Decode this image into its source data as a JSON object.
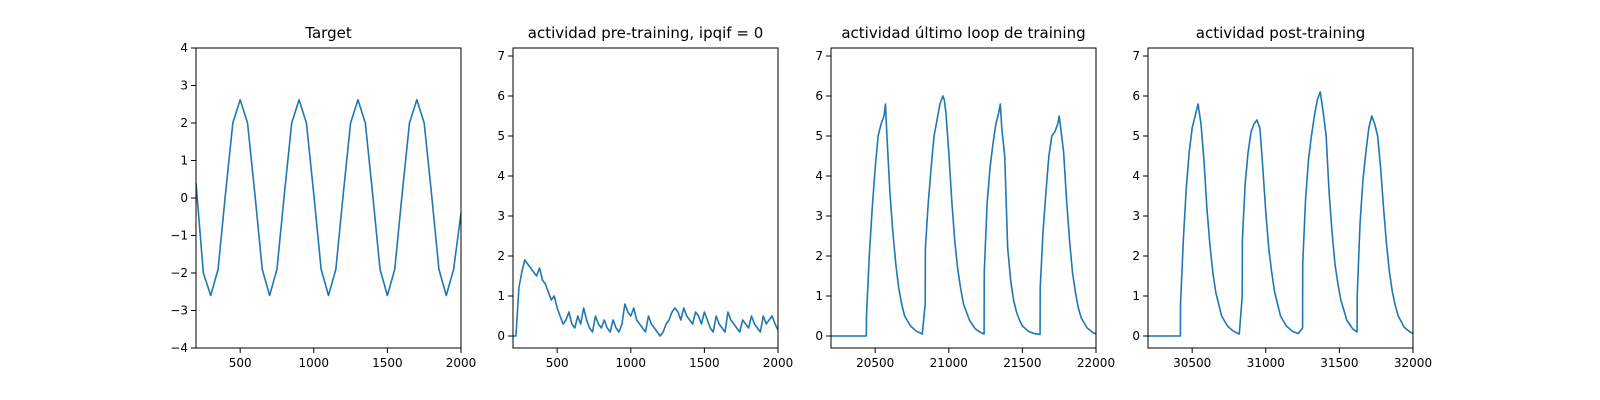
{
  "chart_data": [
    {
      "type": "line",
      "title": "Target",
      "xlim": [
        200,
        2000
      ],
      "ylim": [
        -4,
        4
      ],
      "xticks": [
        500,
        1000,
        1500,
        2000
      ],
      "yticks": [
        -4,
        -3,
        -2,
        -1,
        0,
        1,
        2,
        3,
        4
      ],
      "xtick_labels": [
        "500",
        "1000",
        "1500",
        "2000"
      ],
      "ytick_labels": [
        "−4",
        "−3",
        "−2",
        "−1",
        "0",
        "1",
        "2",
        "3",
        "4"
      ],
      "grid": false,
      "series": [
        {
          "color": "#1f77b4",
          "x": [
            200,
            250,
            300,
            350,
            400,
            450,
            500,
            550,
            600,
            650,
            700,
            750,
            800,
            850,
            900,
            950,
            1000,
            1050,
            1100,
            1150,
            1200,
            1250,
            1300,
            1350,
            1400,
            1450,
            1500,
            1550,
            1600,
            1650,
            1700,
            1750,
            1800,
            1850,
            1900,
            1950,
            2000
          ],
          "y": [
            0.4,
            -2.0,
            -2.6,
            -1.9,
            0.1,
            2.0,
            2.62,
            2.0,
            0.1,
            -1.9,
            -2.6,
            -1.9,
            0.1,
            2.0,
            2.62,
            2.0,
            0.1,
            -1.9,
            -2.6,
            -1.9,
            0.1,
            2.0,
            2.62,
            2.0,
            0.1,
            -1.9,
            -2.6,
            -1.9,
            0.1,
            2.0,
            2.62,
            2.0,
            0.1,
            -1.9,
            -2.6,
            -1.9,
            -0.4
          ]
        }
      ]
    },
    {
      "type": "line",
      "title": "actividad pre-training, ipqif = 0",
      "xlim": [
        200,
        2000
      ],
      "ylim": [
        -0.3,
        7.2
      ],
      "xticks": [
        500,
        1000,
        1500,
        2000
      ],
      "yticks": [
        0,
        1,
        2,
        3,
        4,
        5,
        6,
        7
      ],
      "xtick_labels": [
        "500",
        "1000",
        "1500",
        "2000"
      ],
      "ytick_labels": [
        "0",
        "1",
        "2",
        "3",
        "4",
        "5",
        "6",
        "7"
      ],
      "grid": false,
      "series": [
        {
          "color": "#1f77b4",
          "x": [
            200,
            220,
            240,
            260,
            280,
            300,
            320,
            340,
            360,
            380,
            400,
            420,
            440,
            460,
            480,
            500,
            520,
            540,
            560,
            580,
            600,
            620,
            640,
            660,
            680,
            700,
            720,
            740,
            760,
            780,
            800,
            820,
            840,
            860,
            880,
            900,
            920,
            940,
            960,
            980,
            1000,
            1020,
            1040,
            1060,
            1080,
            1100,
            1120,
            1140,
            1160,
            1180,
            1200,
            1220,
            1240,
            1260,
            1280,
            1300,
            1320,
            1340,
            1360,
            1380,
            1400,
            1420,
            1440,
            1460,
            1480,
            1500,
            1520,
            1540,
            1560,
            1580,
            1600,
            1620,
            1640,
            1660,
            1680,
            1700,
            1720,
            1740,
            1760,
            1780,
            1800,
            1820,
            1840,
            1860,
            1880,
            1900,
            1920,
            1940,
            1960,
            1980,
            2000
          ],
          "y": [
            0.0,
            0.0,
            1.2,
            1.6,
            1.9,
            1.8,
            1.7,
            1.6,
            1.5,
            1.7,
            1.4,
            1.3,
            1.1,
            0.9,
            1.0,
            0.7,
            0.5,
            0.3,
            0.4,
            0.6,
            0.3,
            0.2,
            0.5,
            0.3,
            0.7,
            0.4,
            0.2,
            0.1,
            0.5,
            0.3,
            0.2,
            0.4,
            0.2,
            0.1,
            0.4,
            0.2,
            0.1,
            0.3,
            0.8,
            0.6,
            0.5,
            0.7,
            0.4,
            0.3,
            0.2,
            0.1,
            0.5,
            0.3,
            0.2,
            0.1,
            0.0,
            0.1,
            0.3,
            0.4,
            0.6,
            0.7,
            0.6,
            0.4,
            0.7,
            0.5,
            0.4,
            0.3,
            0.6,
            0.5,
            0.3,
            0.6,
            0.4,
            0.2,
            0.1,
            0.5,
            0.3,
            0.2,
            0.1,
            0.6,
            0.4,
            0.3,
            0.2,
            0.1,
            0.4,
            0.3,
            0.2,
            0.5,
            0.3,
            0.2,
            0.1,
            0.5,
            0.3,
            0.4,
            0.5,
            0.3,
            0.15
          ]
        }
      ]
    },
    {
      "type": "line",
      "title": "actividad último loop de training",
      "xlim": [
        20200,
        22000
      ],
      "ylim": [
        -0.3,
        7.2
      ],
      "xticks": [
        20500,
        21000,
        21500,
        22000
      ],
      "yticks": [
        0,
        1,
        2,
        3,
        4,
        5,
        6,
        7
      ],
      "xtick_labels": [
        "20500",
        "21000",
        "21500",
        "22000"
      ],
      "ytick_labels": [
        "0",
        "1",
        "2",
        "3",
        "4",
        "5",
        "6",
        "7"
      ],
      "grid": false,
      "series": [
        {
          "color": "#1f77b4",
          "x": [
            20200,
            20440,
            20441,
            20460,
            20480,
            20500,
            20520,
            20540,
            20560,
            20570,
            20580,
            20600,
            20620,
            20640,
            20660,
            20680,
            20700,
            20740,
            20780,
            20820,
            20840,
            20841,
            20860,
            20880,
            20900,
            20920,
            20940,
            20960,
            20970,
            20980,
            21000,
            21020,
            21040,
            21060,
            21080,
            21100,
            21140,
            21180,
            21220,
            21240,
            21241,
            21260,
            21280,
            21300,
            21320,
            21340,
            21350,
            21360,
            21380,
            21400,
            21420,
            21440,
            21460,
            21480,
            21500,
            21540,
            21580,
            21620,
            21621,
            21640,
            21660,
            21680,
            21700,
            21720,
            21740,
            21750,
            21760,
            21780,
            21800,
            21820,
            21840,
            21860,
            21880,
            21900,
            21940,
            21980,
            22000
          ],
          "y": [
            0,
            0,
            0.5,
            2.0,
            3.2,
            4.2,
            5.0,
            5.3,
            5.5,
            5.8,
            5.0,
            3.6,
            2.6,
            1.8,
            1.2,
            0.8,
            0.5,
            0.25,
            0.12,
            0.05,
            0.8,
            2.2,
            3.3,
            4.2,
            5.0,
            5.4,
            5.8,
            6.0,
            5.9,
            5.6,
            4.6,
            3.4,
            2.4,
            1.7,
            1.2,
            0.8,
            0.4,
            0.18,
            0.08,
            0.05,
            1.6,
            3.3,
            4.2,
            4.8,
            5.3,
            5.6,
            5.8,
            5.2,
            4.5,
            2.2,
            1.4,
            0.9,
            0.6,
            0.4,
            0.25,
            0.12,
            0.06,
            0.04,
            1.2,
            2.6,
            3.6,
            4.5,
            5.0,
            5.1,
            5.3,
            5.5,
            5.2,
            4.6,
            3.4,
            2.4,
            1.6,
            1.1,
            0.7,
            0.45,
            0.2,
            0.08,
            0.05
          ]
        }
      ]
    },
    {
      "type": "line",
      "title": "actividad post-training",
      "xlim": [
        30200,
        32000
      ],
      "ylim": [
        -0.3,
        7.2
      ],
      "xticks": [
        30500,
        31000,
        31500,
        32000
      ],
      "yticks": [
        0,
        1,
        2,
        3,
        4,
        5,
        6,
        7
      ],
      "xtick_labels": [
        "30500",
        "31000",
        "31500",
        "32000"
      ],
      "ytick_labels": [
        "0",
        "1",
        "2",
        "3",
        "4",
        "5",
        "6",
        "7"
      ],
      "grid": false,
      "series": [
        {
          "color": "#1f77b4",
          "x": [
            30200,
            30420,
            30421,
            30440,
            30460,
            30480,
            30500,
            30520,
            30540,
            30560,
            30580,
            30600,
            30620,
            30640,
            30660,
            30680,
            30700,
            30740,
            30780,
            30820,
            30840,
            30841,
            30860,
            30880,
            30900,
            30920,
            30940,
            30960,
            30980,
            31000,
            31020,
            31040,
            31060,
            31080,
            31100,
            31140,
            31180,
            31220,
            31250,
            31251,
            31270,
            31290,
            31310,
            31330,
            31350,
            31370,
            31390,
            31410,
            31430,
            31450,
            31470,
            31490,
            31510,
            31550,
            31590,
            31620,
            31621,
            31640,
            31660,
            31680,
            31700,
            31720,
            31740,
            31760,
            31780,
            31800,
            31820,
            31840,
            31860,
            31880,
            31900,
            31940,
            31980,
            32000
          ],
          "y": [
            0,
            0,
            0.8,
            2.4,
            3.7,
            4.6,
            5.2,
            5.5,
            5.8,
            5.3,
            4.4,
            3.2,
            2.3,
            1.6,
            1.1,
            0.8,
            0.5,
            0.25,
            0.12,
            0.05,
            1.0,
            2.4,
            3.8,
            4.6,
            5.1,
            5.3,
            5.4,
            5.2,
            4.2,
            3.1,
            2.2,
            1.6,
            1.1,
            0.8,
            0.5,
            0.25,
            0.12,
            0.06,
            0.2,
            1.8,
            3.4,
            4.4,
            5.0,
            5.5,
            5.9,
            6.1,
            5.6,
            5.0,
            3.6,
            2.6,
            1.8,
            1.3,
            0.9,
            0.4,
            0.18,
            0.1,
            1.0,
            2.8,
            3.9,
            4.6,
            5.2,
            5.5,
            5.3,
            5.0,
            4.2,
            3.2,
            2.3,
            1.6,
            1.1,
            0.75,
            0.5,
            0.22,
            0.1,
            0.06
          ]
        }
      ]
    }
  ]
}
